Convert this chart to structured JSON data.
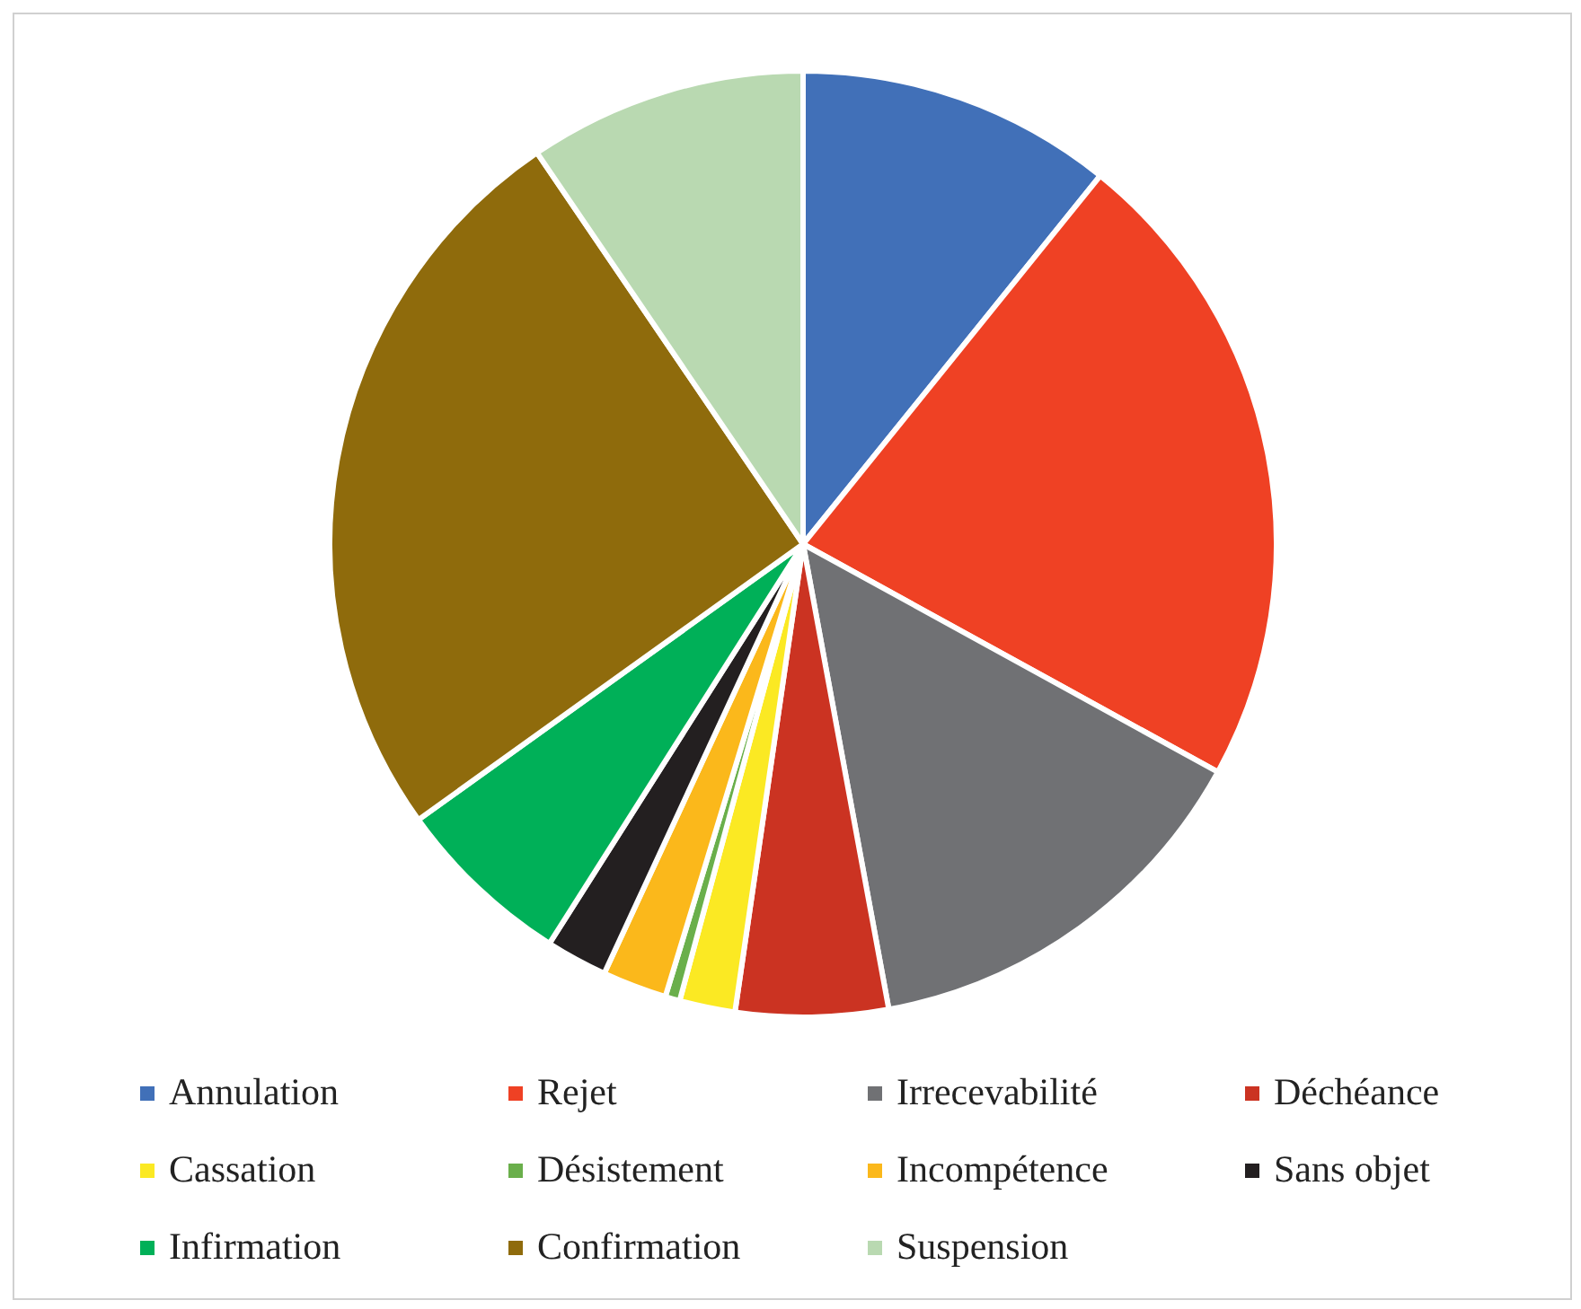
{
  "chart_data": {
    "type": "pie",
    "legend": "bottom",
    "categories": [
      "Annulation",
      "Rejet",
      "Irrecevabilité",
      "Déchéance",
      "Cassation",
      "Désistement",
      "Incompétence",
      "Sans objet",
      "Infirmation",
      "Confirmation",
      "Suspension"
    ],
    "values": [
      10.8,
      22.2,
      14.1,
      5.2,
      1.9,
      0.5,
      2.2,
      2.1,
      6.1,
      25.4,
      9.5
    ],
    "colors": [
      "#4170b8",
      "#ef4124",
      "#707174",
      "#cb3322",
      "#fbe923",
      "#6aaf4b",
      "#fbb81b",
      "#231f20",
      "#00b058",
      "#8f6b0c",
      "#b9d9b1"
    ]
  }
}
